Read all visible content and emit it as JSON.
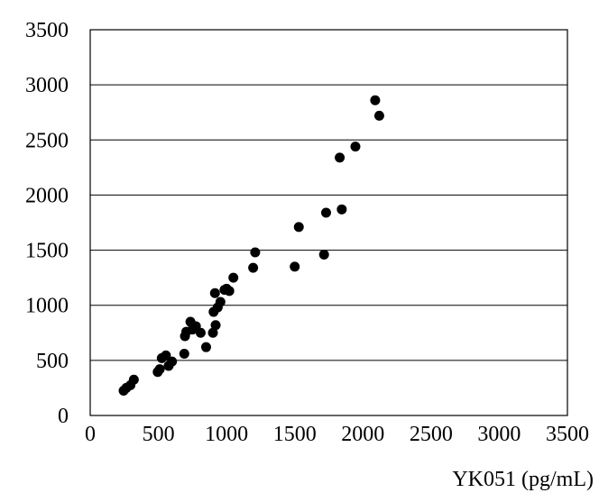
{
  "chart_data": {
    "type": "scatter",
    "title": "",
    "xlabel": "YK051 (pg/mL)",
    "ylabel": "",
    "xlim": [
      0,
      3500
    ],
    "ylim": [
      0,
      3500
    ],
    "xticks": [
      "0",
      "500",
      "1000",
      "1500",
      "2000",
      "2500",
      "3000",
      "3500"
    ],
    "yticks": [
      "0",
      "500",
      "1000",
      "1500",
      "2000",
      "2500",
      "3000",
      "3500"
    ],
    "grid": "horizontal",
    "legend": "none",
    "marker_color": "#000000",
    "series": [
      {
        "points": [
          [
            245,
            225
          ],
          [
            265,
            250
          ],
          [
            295,
            275
          ],
          [
            320,
            325
          ],
          [
            495,
            395
          ],
          [
            510,
            420
          ],
          [
            525,
            520
          ],
          [
            555,
            545
          ],
          [
            575,
            450
          ],
          [
            600,
            490
          ],
          [
            690,
            560
          ],
          [
            695,
            720
          ],
          [
            705,
            760
          ],
          [
            735,
            850
          ],
          [
            750,
            780
          ],
          [
            775,
            810
          ],
          [
            810,
            750
          ],
          [
            850,
            620
          ],
          [
            900,
            750
          ],
          [
            905,
            940
          ],
          [
            915,
            1110
          ],
          [
            920,
            820
          ],
          [
            935,
            980
          ],
          [
            955,
            1030
          ],
          [
            985,
            1140
          ],
          [
            1000,
            1150
          ],
          [
            1020,
            1130
          ],
          [
            1050,
            1250
          ],
          [
            1195,
            1340
          ],
          [
            1210,
            1480
          ],
          [
            1500,
            1350
          ],
          [
            1530,
            1710
          ],
          [
            1715,
            1460
          ],
          [
            1730,
            1840
          ],
          [
            1845,
            1870
          ],
          [
            1830,
            2340
          ],
          [
            1945,
            2440
          ],
          [
            2090,
            2860
          ],
          [
            2120,
            2720
          ]
        ]
      }
    ]
  }
}
